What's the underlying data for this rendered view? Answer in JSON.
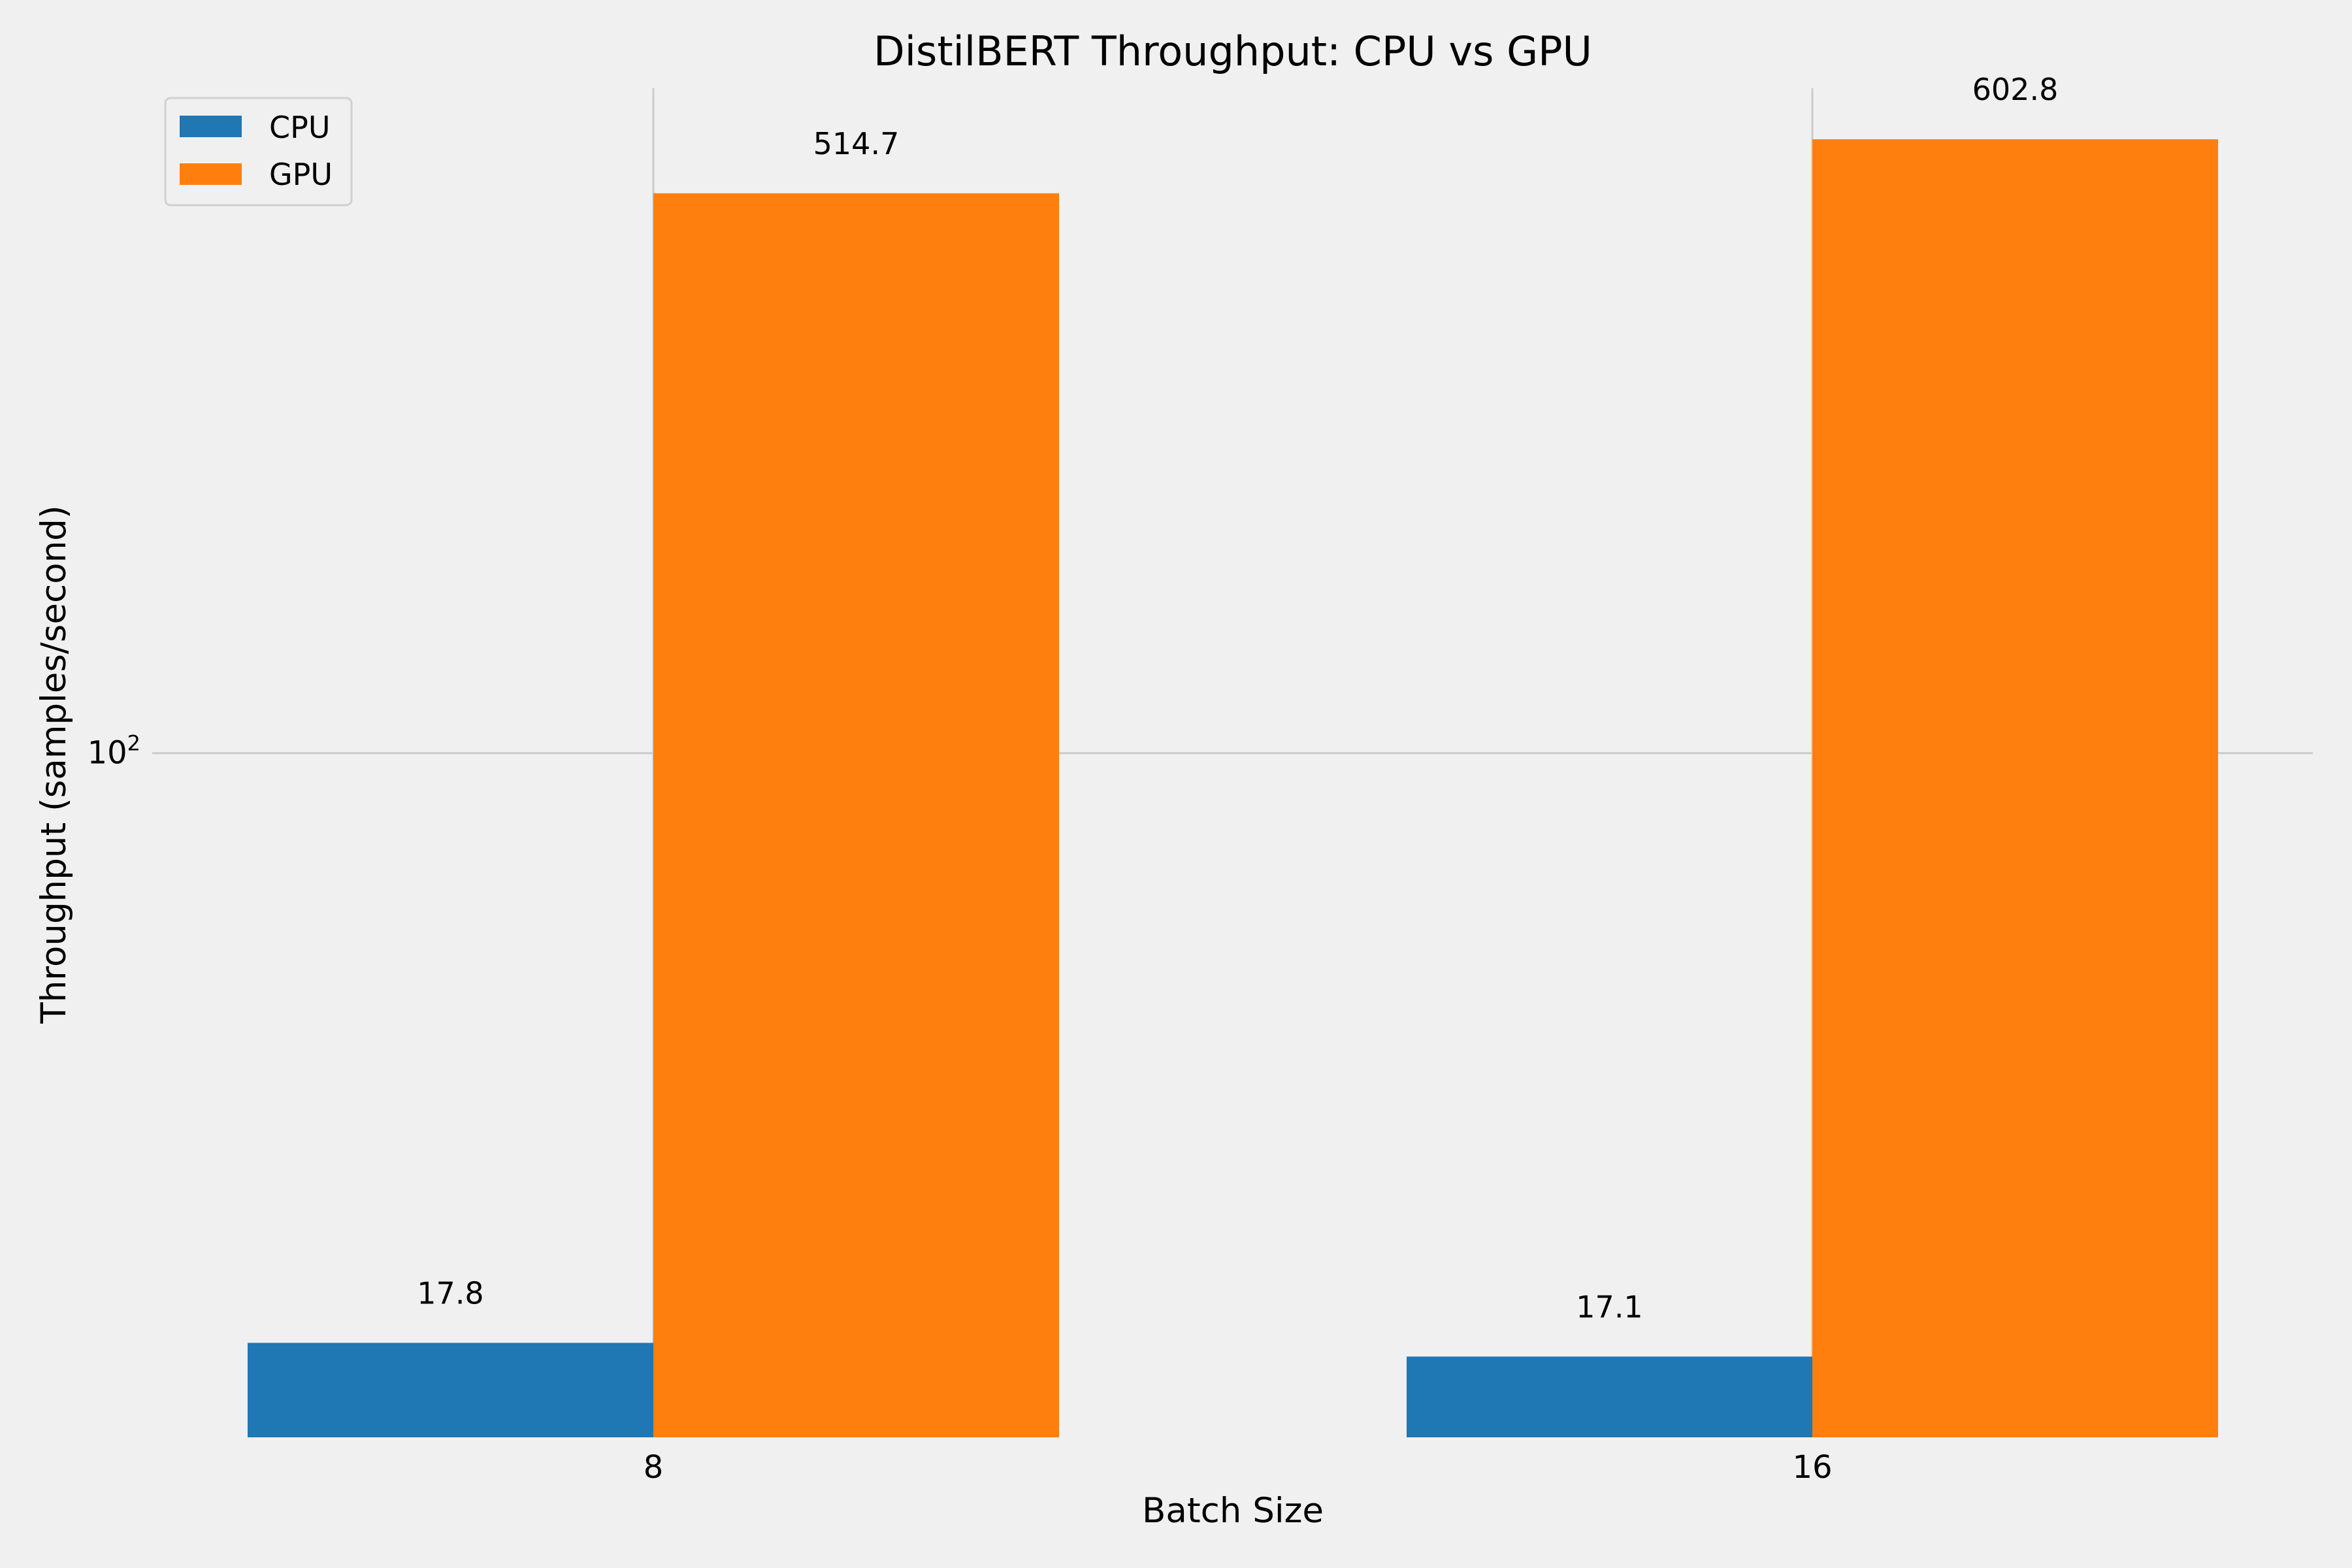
{
  "chart_data": {
    "type": "bar",
    "title": "DistilBERT Throughput: CPU vs GPU",
    "xlabel": "Batch Size",
    "ylabel": "Throughput (samples/second)",
    "categories": [
      "8",
      "16"
    ],
    "yscale": "log",
    "ylim": [
      13.5,
      700
    ],
    "yticks": [
      {
        "value": 100,
        "base": "10",
        "exponent": "2"
      }
    ],
    "grid": true,
    "legend_position": "top-left",
    "series": [
      {
        "name": "CPU",
        "color": "#1f77b4",
        "values": [
          17.8,
          17.1
        ],
        "labels": [
          "17.8",
          "17.1"
        ]
      },
      {
        "name": "GPU",
        "color": "#ff7f0e",
        "values": [
          514.7,
          602.8
        ],
        "labels": [
          "514.7",
          "602.8"
        ]
      }
    ]
  }
}
